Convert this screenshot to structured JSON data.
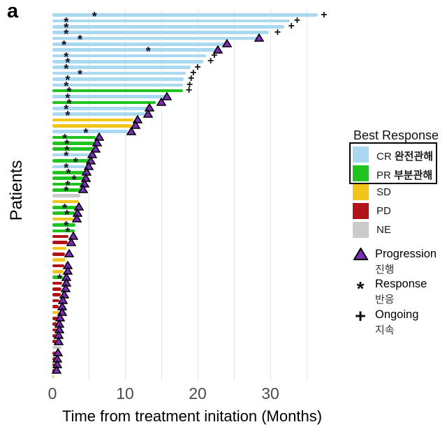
{
  "figure": {
    "panel_label": "a"
  },
  "chart_data": {
    "type": "bar",
    "subtype": "swimmer-plot",
    "xlabel": "Time from treatment initation (Months)",
    "ylabel": "Patients",
    "x_ticks": [
      0,
      10,
      20,
      30
    ],
    "gridline_months": [
      5,
      10,
      15,
      20,
      25,
      30,
      35
    ],
    "xlim": [
      0,
      38.8
    ],
    "grid": "vertical-only",
    "response_colors": {
      "CR": "#a9d8f0",
      "PR": "#1fc41f",
      "SD": "#f2c41c",
      "PD": "#b3121b",
      "NE": "#cbcbcb"
    },
    "marker_colors": {
      "progression_fill": "#7b2cb8",
      "progression_outline": "#000000",
      "response": "#10101e",
      "ongoing": "#111111"
    },
    "legend": {
      "title": "Best Response",
      "entries": [
        {
          "code": "CR",
          "korean": "완전관해",
          "color": "#a9d8f0",
          "boxed": true
        },
        {
          "code": "PR",
          "korean": "부분관해",
          "color": "#1fc41f",
          "boxed": true
        },
        {
          "code": "SD",
          "korean": "",
          "color": "#f2c41c",
          "boxed": false
        },
        {
          "code": "PD",
          "korean": "",
          "color": "#b3121b",
          "boxed": false
        },
        {
          "code": "NE",
          "korean": "",
          "color": "#cbcbcb",
          "boxed": false
        }
      ],
      "markers": [
        {
          "symbol": "triangle",
          "label": "Progression",
          "sublabel": "진행"
        },
        {
          "symbol": "asterisk",
          "label": "Response",
          "sublabel": "반응"
        },
        {
          "symbol": "plus",
          "label": "Ongoing",
          "sublabel": "지속"
        }
      ]
    },
    "patients": [
      {
        "response": "CR",
        "months": 36.5,
        "response_at": 5.8,
        "ongoing_at": 37.4
      },
      {
        "response": "CR",
        "months": 32.7,
        "response_at": 1.9,
        "ongoing_at": 33.7
      },
      {
        "response": "CR",
        "months": 31.9,
        "response_at": 1.9,
        "ongoing_at": 32.9
      },
      {
        "response": "CR",
        "months": 29.8,
        "response_at": 1.9,
        "ongoing_at": 31.0
      },
      {
        "response": "CR",
        "months": 28.4,
        "response_at": 3.8,
        "progression_at": 28.5
      },
      {
        "response": "CR",
        "months": 23.9,
        "response_at": 1.6,
        "progression_at": 24.0
      },
      {
        "response": "CR",
        "months": 22.6,
        "response_at": 13.2,
        "progression_at": 22.8
      },
      {
        "response": "CR",
        "months": 21.2,
        "response_at": 1.9,
        "ongoing_at": 22.3
      },
      {
        "response": "CR",
        "months": 20.8,
        "response_at": 2.1,
        "ongoing_at": 21.8
      },
      {
        "response": "CR",
        "months": 19.0,
        "response_at": 1.9,
        "ongoing_at": 20.0
      },
      {
        "response": "CR",
        "months": 18.4,
        "response_at": 3.8,
        "ongoing_at": 19.4
      },
      {
        "response": "CR",
        "months": 18.1,
        "response_at": 2.1,
        "ongoing_at": 19.1
      },
      {
        "response": "CR",
        "months": 18.0,
        "response_at": 1.9,
        "ongoing_at": 18.9
      },
      {
        "response": "PR",
        "months": 18.0,
        "response_at": 2.3,
        "ongoing_at": 18.8
      },
      {
        "response": "CR",
        "months": 16.0,
        "response_at": 2.1,
        "progression_at": 15.8
      },
      {
        "response": "PR",
        "months": 14.2,
        "response_at": 2.3,
        "progression_at": 15.0
      },
      {
        "response": "CR",
        "months": 13.2,
        "response_at": 1.9,
        "progression_at": 13.4
      },
      {
        "response": "CR",
        "months": 13.0,
        "response_at": 2.1,
        "progression_at": 13.2
      },
      {
        "response": "SD",
        "months": 11.2,
        "progression_at": 11.7
      },
      {
        "response": "SD",
        "months": 11.0,
        "progression_at": 11.4
      },
      {
        "response": "CR",
        "months": 10.4,
        "response_at": 4.6,
        "progression_at": 10.9
      },
      {
        "response": "PR",
        "months": 6.0,
        "response_at": 1.7,
        "progression_at": 6.4
      },
      {
        "response": "PR",
        "months": 5.9,
        "response_at": 2.0,
        "progression_at": 6.2
      },
      {
        "response": "PR",
        "months": 5.8,
        "response_at": 2.0,
        "progression_at": 6.0
      },
      {
        "response": "CR",
        "months": 5.3,
        "response_at": 1.9,
        "progression_at": 5.5
      },
      {
        "response": "PR",
        "months": 5.2,
        "response_at": 3.2,
        "progression_at": 5.3
      },
      {
        "response": "CR",
        "months": 4.8,
        "response_at": 1.9,
        "progression_at": 5.0
      },
      {
        "response": "PR",
        "months": 4.6,
        "response_at": 2.2,
        "progression_at": 4.7
      },
      {
        "response": "PR",
        "months": 4.5,
        "response_at": 3.0,
        "progression_at": 4.6
      },
      {
        "response": "PR",
        "months": 4.3,
        "response_at": 2.1,
        "progression_at": 4.4
      },
      {
        "response": "PR",
        "months": 4.1,
        "response_at": 1.9,
        "progression_at": 4.2
      },
      {
        "response": "NE",
        "months": 3.8
      },
      {
        "response": "SD",
        "months": 3.7
      },
      {
        "response": "PR",
        "months": 3.4,
        "response_at": 1.7,
        "progression_at": 3.7
      },
      {
        "response": "PR",
        "months": 3.2,
        "response_at": 2.0,
        "progression_at": 3.5
      },
      {
        "response": "SD",
        "months": 3.0,
        "progression_at": 3.4
      },
      {
        "response": "PR",
        "months": 3.2,
        "response_at": 1.9
      },
      {
        "response": "PR",
        "months": 3.1,
        "response_at": 2.1
      },
      {
        "response": "PD",
        "months": 2.2,
        "progression_at": 2.9
      },
      {
        "response": "PD",
        "months": 2.1,
        "progression_at": 2.6
      },
      {
        "response": "SD",
        "months": 1.9
      },
      {
        "response": "PD",
        "months": 1.7,
        "progression_at": 2.3
      },
      {
        "response": "SD",
        "months": 1.8
      },
      {
        "response": "PD",
        "months": 1.6,
        "progression_at": 2.1
      },
      {
        "response": "SD",
        "months": 1.5,
        "progression_at": 2.1
      },
      {
        "response": "PR",
        "months": 1.4,
        "response_at": 1.0,
        "progression_at": 1.9
      },
      {
        "response": "PD",
        "months": 1.3,
        "progression_at": 1.9
      },
      {
        "response": "PD",
        "months": 1.25,
        "progression_at": 1.8
      },
      {
        "response": "PD",
        "months": 1.15,
        "progression_at": 1.6
      },
      {
        "response": "PD",
        "months": 1.0,
        "progression_at": 1.4
      },
      {
        "response": "PD",
        "months": 0.9,
        "progression_at": 1.3
      },
      {
        "response": "SD",
        "months": 1.0,
        "progression_at": 1.3
      },
      {
        "response": "PD",
        "months": 0.75,
        "progression_at": 1.1
      },
      {
        "response": "PD",
        "months": 0.7,
        "progression_at": 1.0
      },
      {
        "response": "PD",
        "months": 0.65,
        "progression_at": 0.95
      },
      {
        "response": "PD",
        "months": 0.6,
        "progression_at": 0.9
      },
      {
        "response": "PD",
        "months": 0.55,
        "progression_at": 0.85
      },
      {
        "response": "NE",
        "months": 1.25
      },
      {
        "response": "PD",
        "months": 0.5,
        "progression_at": 0.8
      },
      {
        "response": "PD",
        "months": 0.45,
        "progression_at": 0.7
      },
      {
        "response": "PD",
        "months": 0.4,
        "progression_at": 0.65
      },
      {
        "response": "PD",
        "months": 0.35,
        "progression_at": 0.6
      },
      {
        "response": "SD",
        "months": 0.2
      }
    ]
  }
}
